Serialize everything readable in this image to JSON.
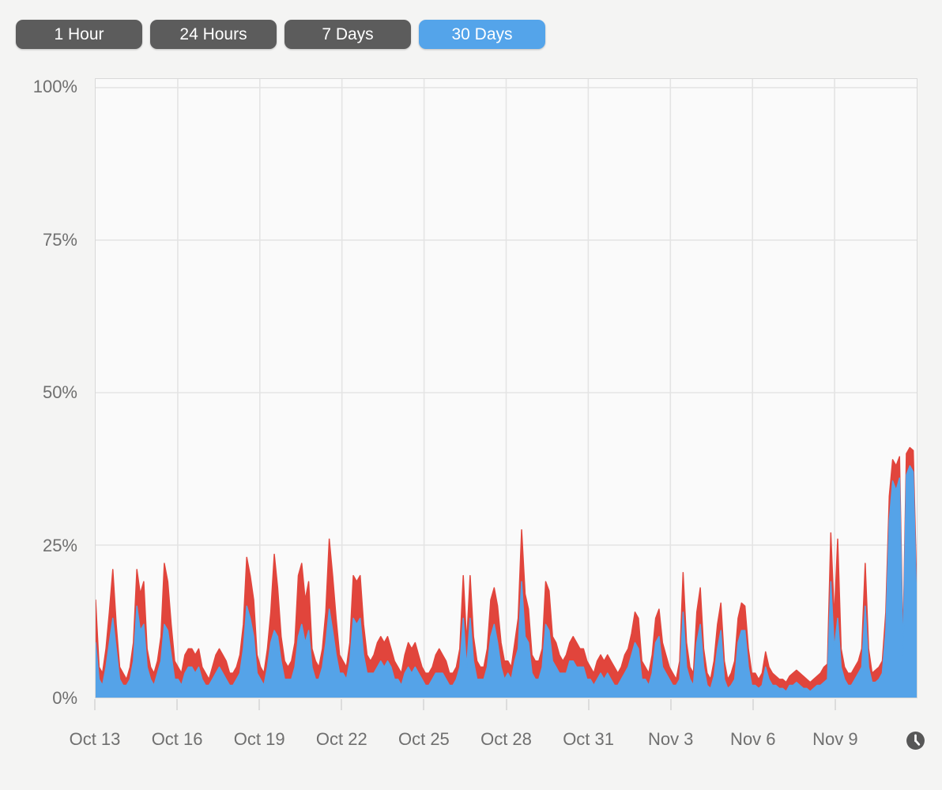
{
  "toolbar": {
    "buttons": [
      {
        "label": "1 Hour",
        "active": false
      },
      {
        "label": "24 Hours",
        "active": false
      },
      {
        "label": "7 Days",
        "active": false
      },
      {
        "label": "30 Days",
        "active": true
      }
    ]
  },
  "colors": {
    "active_button": "#54a4ea",
    "inactive_button": "#5c5c5c",
    "button_text": "#ffffff",
    "series_red": "#e1453c",
    "series_blue": "#55a3e8",
    "axis_text": "#6f6f6f",
    "grid_line": "#e4e4e4",
    "plot_background": "#fafafa"
  },
  "chart_data": {
    "type": "area",
    "title": "",
    "xlabel": "",
    "ylabel": "",
    "ylim": [
      0,
      100
    ],
    "grid": true,
    "legend": "none",
    "x_range_days": 30,
    "x_tick_interval_days": 3,
    "points_per_day": 8,
    "x_tick_labels": [
      "Oct 13",
      "Oct 16",
      "Oct 19",
      "Oct 22",
      "Oct 25",
      "Oct 28",
      "Oct 31",
      "Nov 3",
      "Nov 6",
      "Nov 9"
    ],
    "y_tick_labels": [
      "100%",
      "75%",
      "50%",
      "25%",
      "0%"
    ],
    "y_tick_values": [
      100,
      75,
      50,
      25,
      0
    ],
    "series": [
      {
        "name": "total_usage_red",
        "color": "#e1453c",
        "values": [
          16,
          5,
          4,
          8,
          14,
          21,
          12,
          5,
          4,
          3,
          5,
          9,
          21,
          17,
          19,
          8,
          5,
          4,
          6,
          10,
          22,
          19,
          12,
          6,
          5,
          4,
          7,
          8,
          8,
          7,
          8,
          5,
          4,
          3,
          5,
          7,
          8,
          7,
          6,
          4,
          4,
          5,
          7,
          12,
          23,
          20,
          16,
          7,
          5,
          4,
          8,
          14,
          23.5,
          18,
          10,
          6,
          5,
          6,
          9,
          20,
          22,
          16,
          19,
          8,
          6,
          5,
          8,
          14,
          26,
          20,
          13,
          7,
          6,
          5,
          9,
          20,
          19,
          20,
          12,
          7,
          6,
          7,
          9,
          10,
          9,
          10,
          8,
          6,
          5,
          4,
          7,
          9,
          8,
          9,
          7,
          5,
          4,
          4,
          5,
          7,
          8,
          7,
          6,
          4,
          4,
          5,
          8,
          20,
          9,
          20,
          10,
          6,
          5,
          5,
          8,
          16,
          18,
          15,
          9,
          6,
          6,
          5,
          9,
          13,
          27.5,
          17,
          14.5,
          7,
          6,
          6,
          8,
          19,
          17.5,
          10,
          9,
          7,
          6,
          7,
          9,
          10,
          9,
          8,
          8,
          6,
          5,
          4,
          6,
          7,
          6,
          7,
          6,
          5,
          4,
          5,
          7,
          8,
          10.5,
          14,
          13,
          6,
          5,
          4,
          7,
          13,
          14.5,
          9,
          7,
          5,
          4,
          3,
          6,
          20.5,
          9,
          5,
          4,
          14,
          18,
          8,
          4,
          3,
          6,
          12,
          15.5,
          6,
          3,
          4,
          6,
          13,
          15.5,
          15,
          8,
          4,
          4,
          3,
          4,
          7.5,
          5,
          4,
          3.5,
          3,
          3,
          2.5,
          3.5,
          4,
          4.5,
          4,
          3.5,
          3,
          2.5,
          3,
          3.5,
          4,
          5,
          5.5,
          27,
          13,
          26,
          8,
          5,
          4,
          4,
          5,
          6,
          8,
          22,
          8,
          4,
          4.5,
          5,
          6,
          14,
          33,
          39,
          38,
          39.5,
          9,
          40,
          41,
          40.5,
          18
        ]
      },
      {
        "name": "base_usage_blue",
        "color": "#55a3e8",
        "values": [
          9,
          3,
          2,
          5,
          9,
          13,
          8,
          3,
          2,
          2,
          3,
          6,
          15,
          11,
          12,
          5,
          3,
          2,
          4,
          6,
          12,
          11,
          7,
          3,
          3,
          2,
          4,
          5,
          5,
          4,
          5,
          3,
          2,
          2,
          3,
          4,
          5,
          4,
          3,
          2,
          2,
          3,
          4,
          8,
          15,
          13,
          10,
          4,
          3,
          2,
          5,
          9,
          11,
          10,
          6,
          3,
          3,
          3,
          5,
          10,
          12,
          9,
          11,
          5,
          3,
          3,
          5,
          9,
          14.5,
          11,
          7,
          4,
          4,
          3,
          6,
          13,
          12,
          13,
          7,
          4,
          4,
          4,
          5,
          6,
          5,
          6,
          5,
          3,
          3,
          2,
          4,
          5,
          4,
          5,
          4,
          3,
          2,
          2,
          3,
          4,
          4,
          4,
          3,
          2,
          2,
          3,
          5,
          13,
          5,
          13,
          6,
          3,
          3,
          3,
          5,
          10,
          12,
          9,
          5,
          3,
          4,
          3,
          6,
          8,
          19,
          10,
          9,
          4,
          3,
          3,
          5,
          12,
          11,
          6,
          5,
          4,
          4,
          4,
          6,
          6,
          5,
          5,
          5,
          3,
          3,
          2,
          3,
          4,
          3,
          4,
          3,
          2,
          2,
          3,
          4,
          5,
          7,
          9,
          8,
          3,
          3,
          2,
          4,
          9,
          10,
          5,
          4,
          3,
          2,
          2,
          3,
          14,
          5,
          3,
          2,
          9,
          12,
          5,
          2,
          1.5,
          3.5,
          8,
          11,
          3,
          1.5,
          2,
          3,
          9,
          11,
          11,
          5,
          2,
          2,
          1.5,
          2,
          5,
          3,
          2,
          2,
          1.5,
          1.5,
          1,
          2,
          2,
          2.5,
          2,
          1.5,
          1.5,
          1,
          1.5,
          2,
          2,
          2.5,
          3,
          19,
          8,
          13,
          5,
          3,
          2,
          2,
          3,
          4,
          5,
          15,
          5,
          2.5,
          2.5,
          3,
          4,
          11,
          29,
          35.5,
          34,
          36,
          7,
          36.5,
          38,
          37,
          15
        ]
      }
    ]
  },
  "footer": {
    "clock_icon": "clock"
  }
}
